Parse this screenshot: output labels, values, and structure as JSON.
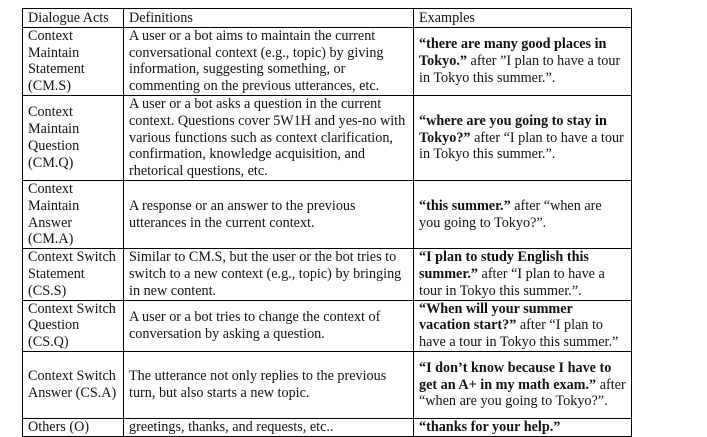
{
  "table": {
    "headers": [
      "Dialogue Acts",
      "Definitions",
      "Examples"
    ],
    "rows": [
      {
        "act": "Context Maintain Statement (CM.S)",
        "definition": "A user or a bot aims to maintain the current conversational context (e.g., topic) by giving information, suggesting something, or commenting on the previous utterances, etc.",
        "example_bold": "“there are many good places in Tokyo.”",
        "example_rest": " after ”I plan to have a tour in Tokyo this summer.”."
      },
      {
        "act": "Context Maintain Question (CM.Q)",
        "definition": "A user or a bot asks a question in the current context. Questions cover 5W1H and yes-no with various functions such as context clarification, confirmation, knowledge acquisition, and rhetorical questions, etc.",
        "example_bold": "“where are you going to stay in Tokyo?”",
        "example_rest": " after “I plan to have a tour in Tokyo this summer.”."
      },
      {
        "act": "Context Maintain Answer (CM.A)",
        "definition": "A response or an answer to the previous utterances in the current context.",
        "example_bold": "“this summer.”",
        "example_rest": " after “when are you going to Tokyo?”."
      },
      {
        "act": "Context Switch Statement (CS.S)",
        "definition": "Similar to CM.S, but the user or the bot tries to switch to a new context (e.g., topic) by bringing in new content.",
        "example_bold": "“I plan to study English this summer.”",
        "example_rest": " after “I plan to have a tour in Tokyo this summer.”."
      },
      {
        "act": "Context Switch Question (CS.Q)",
        "definition": "A user or a bot tries to change the context of conversation by asking a question.",
        "example_bold": "“When will your summer vacation start?”",
        "example_rest": " after “I plan to have a tour in Tokyo this summer.”"
      },
      {
        "act": "Context Switch Answer (CS.A)",
        "definition": "The utterance not only replies to the previous turn, but also starts a new topic.",
        "example_bold": "“I don’t know because I have to get an A+ in my math exam.”",
        "example_rest": " after “when are you going to Tokyo?”."
      },
      {
        "act": "Others (O)",
        "definition": "greetings, thanks, and requests, etc..",
        "example_bold": "“thanks for your help.”",
        "example_rest": ""
      }
    ]
  }
}
